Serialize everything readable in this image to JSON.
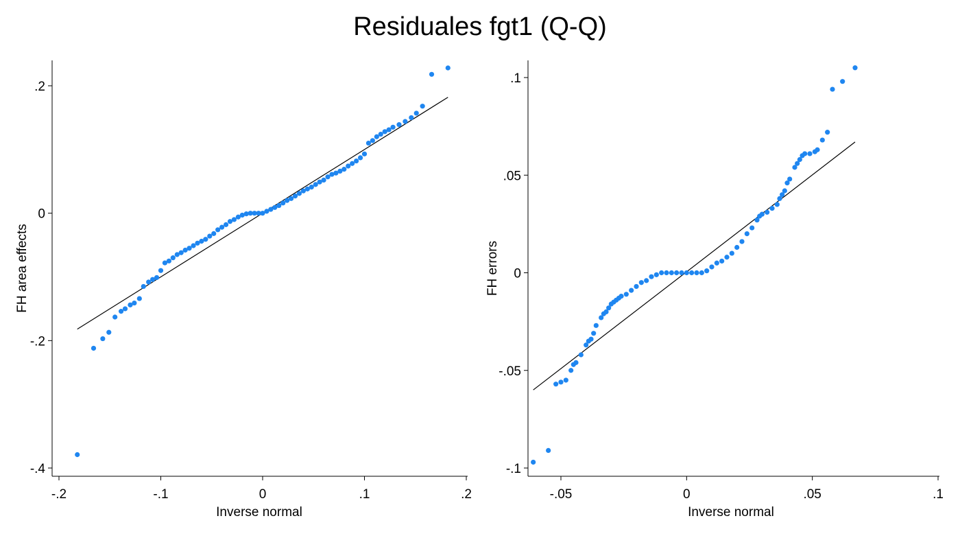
{
  "title": "Residuales fgt1 (Q-Q)",
  "colors": {
    "point": "#1f86f0",
    "line": "#000000",
    "axis": "#000000"
  },
  "chart_data": [
    {
      "type": "scatter",
      "title": "",
      "xlabel": "Inverse normal",
      "ylabel": "FH area effects",
      "xlim": [
        -0.2,
        0.2
      ],
      "ylim": [
        -0.4,
        0.2
      ],
      "xticks": [
        -0.2,
        -0.1,
        0,
        0.1,
        0.2
      ],
      "xtick_labels": [
        "-.2",
        "-.1",
        "0",
        ".1",
        ".2"
      ],
      "yticks": [
        -0.4,
        -0.2,
        0,
        0.2
      ],
      "ytick_labels": [
        "-.4",
        "-.2",
        "0",
        ".2"
      ],
      "grid": false,
      "reference_line": {
        "x": [
          -0.182,
          0.182
        ],
        "y": [
          -0.182,
          0.182
        ]
      },
      "points": {
        "x": [
          -0.182,
          -0.166,
          -0.157,
          -0.151,
          -0.145,
          -0.139,
          -0.135,
          -0.13,
          -0.126,
          -0.121,
          -0.117,
          -0.112,
          -0.108,
          -0.104,
          -0.1,
          -0.096,
          -0.092,
          -0.088,
          -0.084,
          -0.08,
          -0.076,
          -0.072,
          -0.068,
          -0.064,
          -0.06,
          -0.056,
          -0.052,
          -0.048,
          -0.044,
          -0.04,
          -0.036,
          -0.032,
          -0.028,
          -0.024,
          -0.02,
          -0.016,
          -0.012,
          -0.008,
          -0.004,
          0.0,
          0.004,
          0.008,
          0.012,
          0.016,
          0.02,
          0.024,
          0.028,
          0.032,
          0.036,
          0.04,
          0.044,
          0.048,
          0.052,
          0.056,
          0.06,
          0.064,
          0.068,
          0.072,
          0.076,
          0.08,
          0.084,
          0.088,
          0.092,
          0.096,
          0.1,
          0.104,
          0.108,
          0.112,
          0.116,
          0.12,
          0.124,
          0.128,
          0.134,
          0.14,
          0.146,
          0.151,
          0.157,
          0.166,
          0.182
        ],
        "y": [
          -0.379,
          -0.212,
          -0.197,
          -0.187,
          -0.163,
          -0.154,
          -0.15,
          -0.144,
          -0.141,
          -0.134,
          -0.115,
          -0.108,
          -0.104,
          -0.101,
          -0.09,
          -0.078,
          -0.075,
          -0.07,
          -0.065,
          -0.062,
          -0.058,
          -0.055,
          -0.051,
          -0.047,
          -0.044,
          -0.041,
          -0.036,
          -0.032,
          -0.026,
          -0.022,
          -0.018,
          -0.013,
          -0.01,
          -0.006,
          -0.003,
          -0.001,
          0.0,
          0.0,
          0.0,
          0.0,
          0.003,
          0.006,
          0.009,
          0.012,
          0.016,
          0.02,
          0.023,
          0.027,
          0.031,
          0.035,
          0.038,
          0.041,
          0.045,
          0.049,
          0.052,
          0.057,
          0.061,
          0.063,
          0.066,
          0.069,
          0.074,
          0.078,
          0.082,
          0.087,
          0.093,
          0.11,
          0.114,
          0.12,
          0.124,
          0.128,
          0.131,
          0.135,
          0.139,
          0.144,
          0.15,
          0.157,
          0.168,
          0.218,
          0.228
        ]
      }
    },
    {
      "type": "scatter",
      "title": "",
      "xlabel": "Inverse normal",
      "ylabel": "FH errors",
      "xlim": [
        -0.062,
        0.1
      ],
      "ylim": [
        -0.1,
        0.1
      ],
      "xticks": [
        -0.05,
        0,
        0.05,
        0.1
      ],
      "xtick_labels": [
        "-.05",
        "0",
        ".05",
        ".1"
      ],
      "yticks": [
        -0.1,
        -0.05,
        0,
        0.05,
        0.1
      ],
      "ytick_labels": [
        "-.1",
        "-.05",
        "0",
        ".05",
        ".1"
      ],
      "grid": false,
      "reference_line": {
        "x": [
          -0.061,
          0.067
        ],
        "y": [
          -0.06,
          0.067
        ]
      },
      "points": {
        "x": [
          -0.061,
          -0.055,
          -0.052,
          -0.05,
          -0.048,
          -0.046,
          -0.045,
          -0.044,
          -0.042,
          -0.04,
          -0.039,
          -0.038,
          -0.037,
          -0.036,
          -0.034,
          -0.033,
          -0.032,
          -0.031,
          -0.03,
          -0.029,
          -0.028,
          -0.027,
          -0.026,
          -0.024,
          -0.022,
          -0.02,
          -0.018,
          -0.016,
          -0.014,
          -0.012,
          -0.01,
          -0.008,
          -0.006,
          -0.004,
          -0.002,
          0.0,
          0.002,
          0.004,
          0.006,
          0.008,
          0.01,
          0.012,
          0.014,
          0.016,
          0.018,
          0.02,
          0.022,
          0.024,
          0.026,
          0.028,
          0.029,
          0.03,
          0.032,
          0.034,
          0.036,
          0.037,
          0.038,
          0.039,
          0.04,
          0.041,
          0.043,
          0.044,
          0.045,
          0.046,
          0.047,
          0.049,
          0.051,
          0.052,
          0.054,
          0.056,
          0.058,
          0.062,
          0.067
        ],
        "y": [
          -0.097,
          -0.091,
          -0.057,
          -0.056,
          -0.055,
          -0.05,
          -0.047,
          -0.046,
          -0.042,
          -0.037,
          -0.035,
          -0.034,
          -0.031,
          -0.027,
          -0.023,
          -0.021,
          -0.02,
          -0.018,
          -0.016,
          -0.015,
          -0.014,
          -0.013,
          -0.012,
          -0.011,
          -0.009,
          -0.007,
          -0.005,
          -0.004,
          -0.002,
          -0.001,
          0.0,
          0.0,
          0.0,
          0.0,
          0.0,
          0.0,
          0.0,
          0.0,
          0.0,
          0.001,
          0.003,
          0.005,
          0.006,
          0.008,
          0.01,
          0.013,
          0.016,
          0.02,
          0.023,
          0.027,
          0.029,
          0.03,
          0.031,
          0.033,
          0.035,
          0.038,
          0.04,
          0.042,
          0.046,
          0.048,
          0.054,
          0.056,
          0.058,
          0.06,
          0.061,
          0.061,
          0.062,
          0.063,
          0.068,
          0.072,
          0.094,
          0.098,
          0.105
        ]
      }
    }
  ]
}
